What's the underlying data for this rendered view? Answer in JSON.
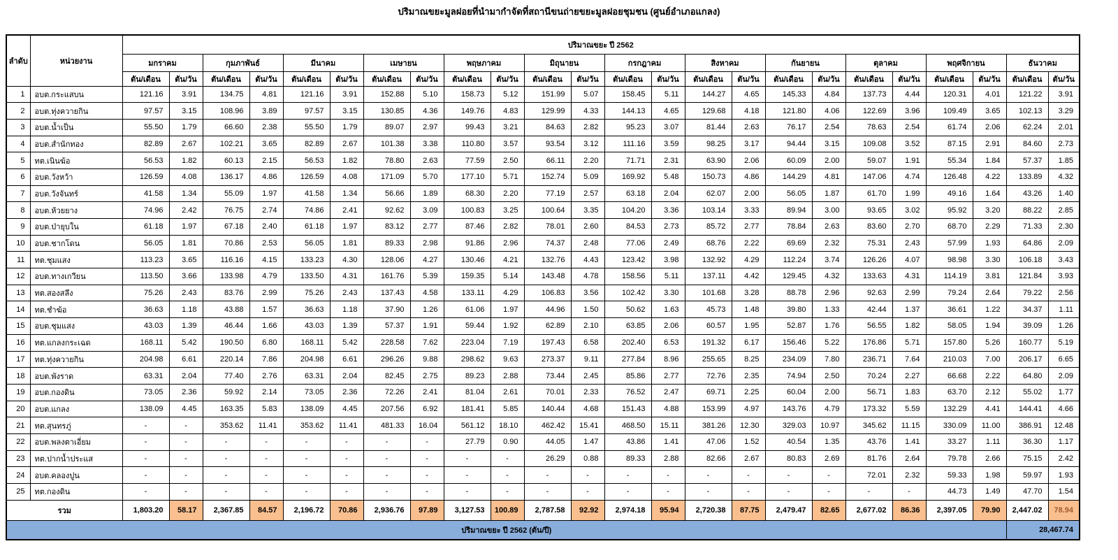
{
  "title": "ปริมาณขยะมูลฝอยที่นำมากำจัดที่สถานีขนถ่ายขยะมูลฝอยชุมชน (ศูนย์อำเภอแกลง)",
  "colors": {
    "total_day_bg": "#FABF8F",
    "footer_bg": "#8AAEDC",
    "dec_day_text": "#A05A2D"
  },
  "table": {
    "col_no": "ลำดับ",
    "col_agency": "หน่วยงาน",
    "year_band": "ปริมาณขยะ ปี 2562",
    "unit_month": "ตัน/เดือน",
    "unit_day": "ตัน/วัน",
    "months": [
      "มกราคม",
      "กุมภาพันธ์",
      "มีนาคม",
      "เมษายน",
      "พฤษภาคม",
      "มิถุนายน",
      "กรกฎาคม",
      "สิงหาคม",
      "กันยายน",
      "ตุลาคม",
      "พฤศจิกายน",
      "ธันวาคม"
    ],
    "rows": [
      {
        "no": "1",
        "agency": "อบต.กระแสบน",
        "values": [
          "121.16",
          "3.91",
          "134.75",
          "4.81",
          "121.16",
          "3.91",
          "152.88",
          "5.10",
          "158.73",
          "5.12",
          "151.99",
          "5.07",
          "158.45",
          "5.11",
          "144.27",
          "4.65",
          "145.33",
          "4.84",
          "137.73",
          "4.44",
          "120.31",
          "4.01",
          "121.22",
          "3.91"
        ]
      },
      {
        "no": "2",
        "agency": "อบต.ทุ่งควายกิน",
        "values": [
          "97.57",
          "3.15",
          "108.96",
          "3.89",
          "97.57",
          "3.15",
          "130.85",
          "4.36",
          "149.76",
          "4.83",
          "129.99",
          "4.33",
          "144.13",
          "4.65",
          "129.68",
          "4.18",
          "121.80",
          "4.06",
          "122.69",
          "3.96",
          "109.49",
          "3.65",
          "102.13",
          "3.29"
        ]
      },
      {
        "no": "3",
        "agency": "อบต.น้ำเป็น",
        "values": [
          "55.50",
          "1.79",
          "66.60",
          "2.38",
          "55.50",
          "1.79",
          "89.07",
          "2.97",
          "99.43",
          "3.21",
          "84.63",
          "2.82",
          "95.23",
          "3.07",
          "81.44",
          "2.63",
          "76.17",
          "2.54",
          "78.63",
          "2.54",
          "61.74",
          "2.06",
          "62.24",
          "2.01"
        ]
      },
      {
        "no": "4",
        "agency": "อบต.สำนักทอง",
        "values": [
          "82.89",
          "2.67",
          "102.21",
          "3.65",
          "82.89",
          "2.67",
          "101.38",
          "3.38",
          "110.80",
          "3.57",
          "93.54",
          "3.12",
          "111.16",
          "3.59",
          "98.25",
          "3.17",
          "94.44",
          "3.15",
          "109.08",
          "3.52",
          "87.15",
          "2.91",
          "84.60",
          "2.73"
        ]
      },
      {
        "no": "5",
        "agency": "ทต.เนินฆ้อ",
        "values": [
          "56.53",
          "1.82",
          "60.13",
          "2.15",
          "56.53",
          "1.82",
          "78.80",
          "2.63",
          "77.59",
          "2.50",
          "66.11",
          "2.20",
          "71.71",
          "2.31",
          "63.90",
          "2.06",
          "60.09",
          "2.00",
          "59.07",
          "1.91",
          "55.34",
          "1.84",
          "57.37",
          "1.85"
        ]
      },
      {
        "no": "6",
        "agency": "อบต.วังหว้า",
        "values": [
          "126.59",
          "4.08",
          "136.17",
          "4.86",
          "126.59",
          "4.08",
          "171.09",
          "5.70",
          "177.10",
          "5.71",
          "152.74",
          "5.09",
          "169.92",
          "5.48",
          "150.73",
          "4.86",
          "144.29",
          "4.81",
          "147.06",
          "4.74",
          "126.48",
          "4.22",
          "133.89",
          "4.32"
        ]
      },
      {
        "no": "7",
        "agency": "อบต.วังจันทร์",
        "values": [
          "41.58",
          "1.34",
          "55.09",
          "1.97",
          "41.58",
          "1.34",
          "56.66",
          "1.89",
          "68.30",
          "2.20",
          "77.19",
          "2.57",
          "63.18",
          "2.04",
          "62.07",
          "2.00",
          "56.05",
          "1.87",
          "61.70",
          "1.99",
          "49.16",
          "1.64",
          "43.26",
          "1.40"
        ]
      },
      {
        "no": "8",
        "agency": "อบต.ห้วยยาง",
        "values": [
          "74.96",
          "2.42",
          "76.75",
          "2.74",
          "74.86",
          "2.41",
          "92.62",
          "3.09",
          "100.83",
          "3.25",
          "100.64",
          "3.35",
          "104.20",
          "3.36",
          "103.14",
          "3.33",
          "89.94",
          "3.00",
          "93.65",
          "3.02",
          "95.92",
          "3.20",
          "88.22",
          "2.85"
        ]
      },
      {
        "no": "9",
        "agency": "อบต.ป่ายุบใน",
        "values": [
          "61.18",
          "1.97",
          "67.18",
          "2.40",
          "61.18",
          "1.97",
          "83.12",
          "2.77",
          "87.46",
          "2.82",
          "78.01",
          "2.60",
          "84.53",
          "2.73",
          "85.72",
          "2.77",
          "78.84",
          "2.63",
          "83.60",
          "2.70",
          "68.70",
          "2.29",
          "71.33",
          "2.30"
        ]
      },
      {
        "no": "10",
        "agency": "อบต.ชากโดน",
        "values": [
          "56.05",
          "1.81",
          "70.86",
          "2.53",
          "56.05",
          "1.81",
          "89.33",
          "2.98",
          "91.86",
          "2.96",
          "74.37",
          "2.48",
          "77.06",
          "2.49",
          "68.76",
          "2.22",
          "69.69",
          "2.32",
          "75.31",
          "2.43",
          "57.99",
          "1.93",
          "64.86",
          "2.09"
        ]
      },
      {
        "no": "11",
        "agency": "ทต.ชุมแสง",
        "values": [
          "113.23",
          "3.65",
          "116.16",
          "4.15",
          "133.23",
          "4.30",
          "128.06",
          "4.27",
          "130.46",
          "4.21",
          "132.76",
          "4.43",
          "123.42",
          "3.98",
          "132.92",
          "4.29",
          "112.24",
          "3.74",
          "126.26",
          "4.07",
          "98.98",
          "3.30",
          "106.18",
          "3.43"
        ]
      },
      {
        "no": "12",
        "agency": "อบต.ทางเกวียน",
        "values": [
          "113.50",
          "3.66",
          "133.98",
          "4.79",
          "133.50",
          "4.31",
          "161.76",
          "5.39",
          "159.35",
          "5.14",
          "143.48",
          "4.78",
          "158.56",
          "5.11",
          "137.11",
          "4.42",
          "129.45",
          "4.32",
          "133.63",
          "4.31",
          "114.19",
          "3.81",
          "121.84",
          "3.93"
        ]
      },
      {
        "no": "13",
        "agency": "ทต.สองสลึง",
        "values": [
          "75.26",
          "2.43",
          "83.76",
          "2.99",
          "75.26",
          "2.43",
          "137.43",
          "4.58",
          "133.11",
          "4.29",
          "106.83",
          "3.56",
          "102.42",
          "3.30",
          "101.68",
          "3.28",
          "88.78",
          "2.96",
          "92.63",
          "2.99",
          "79.24",
          "2.64",
          "79.22",
          "2.56"
        ]
      },
      {
        "no": "14",
        "agency": "ทต.ชำฆ้อ",
        "values": [
          "36.63",
          "1.18",
          "43.88",
          "1.57",
          "36.63",
          "1.18",
          "37.90",
          "1.26",
          "61.06",
          "1.97",
          "44.96",
          "1.50",
          "50.62",
          "1.63",
          "45.73",
          "1.48",
          "39.80",
          "1.33",
          "42.44",
          "1.37",
          "36.61",
          "1.22",
          "34.37",
          "1.11"
        ]
      },
      {
        "no": "15",
        "agency": "อบต.ชุมแสง",
        "values": [
          "43.03",
          "1.39",
          "46.44",
          "1.66",
          "43.03",
          "1.39",
          "57.37",
          "1.91",
          "59.44",
          "1.92",
          "62.89",
          "2.10",
          "63.85",
          "2.06",
          "60.57",
          "1.95",
          "52.87",
          "1.76",
          "56.55",
          "1.82",
          "58.05",
          "1.94",
          "39.09",
          "1.26"
        ]
      },
      {
        "no": "16",
        "agency": "ทต.แกลงกระเฉด",
        "values": [
          "168.11",
          "5.42",
          "190.50",
          "6.80",
          "168.11",
          "5.42",
          "228.58",
          "7.62",
          "223.04",
          "7.19",
          "197.43",
          "6.58",
          "202.40",
          "6.53",
          "191.32",
          "6.17",
          "156.46",
          "5.22",
          "176.86",
          "5.71",
          "157.80",
          "5.26",
          "160.77",
          "5.19"
        ]
      },
      {
        "no": "17",
        "agency": "ทต.ทุ่งควายกิน",
        "values": [
          "204.98",
          "6.61",
          "220.14",
          "7.86",
          "204.98",
          "6.61",
          "296.26",
          "9.88",
          "298.62",
          "9.63",
          "273.37",
          "9.11",
          "277.84",
          "8.96",
          "255.65",
          "8.25",
          "234.09",
          "7.80",
          "236.71",
          "7.64",
          "210.03",
          "7.00",
          "206.17",
          "6.65"
        ]
      },
      {
        "no": "18",
        "agency": "อบต.พังราด",
        "values": [
          "63.31",
          "2.04",
          "77.40",
          "2.76",
          "63.31",
          "2.04",
          "82.45",
          "2.75",
          "89.23",
          "2.88",
          "73.44",
          "2.45",
          "85.86",
          "2.77",
          "72.76",
          "2.35",
          "74.94",
          "2.50",
          "70.24",
          "2.27",
          "66.68",
          "2.22",
          "64.80",
          "2.09"
        ]
      },
      {
        "no": "19",
        "agency": "อบต.กองดิน",
        "values": [
          "73.05",
          "2.36",
          "59.92",
          "2.14",
          "73.05",
          "2.36",
          "72.26",
          "2.41",
          "81.04",
          "2.61",
          "70.01",
          "2.33",
          "76.52",
          "2.47",
          "69.71",
          "2.25",
          "60.04",
          "2.00",
          "56.71",
          "1.83",
          "63.70",
          "2.12",
          "55.02",
          "1.77"
        ]
      },
      {
        "no": "20",
        "agency": "อบต.แกลง",
        "values": [
          "138.09",
          "4.45",
          "163.35",
          "5.83",
          "138.09",
          "4.45",
          "207.56",
          "6.92",
          "181.41",
          "5.85",
          "140.44",
          "4.68",
          "151.43",
          "4.88",
          "153.99",
          "4.97",
          "143.76",
          "4.79",
          "173.32",
          "5.59",
          "132.29",
          "4.41",
          "144.41",
          "4.66"
        ]
      },
      {
        "no": "21",
        "agency": "ทต.สุนทรภู่",
        "values": [
          "-",
          "-",
          "353.62",
          "11.41",
          "353.62",
          "11.41",
          "481.33",
          "16.04",
          "561.12",
          "18.10",
          "462.42",
          "15.41",
          "468.50",
          "15.11",
          "381.26",
          "12.30",
          "329.03",
          "10.97",
          "345.62",
          "11.15",
          "330.09",
          "11.00",
          "386.91",
          "12.48"
        ]
      },
      {
        "no": "22",
        "agency": "อบต.พลงตาเอี่ยม",
        "values": [
          "-",
          "-",
          "-",
          "-",
          "-",
          "-",
          "-",
          "-",
          "27.79",
          "0.90",
          "44.05",
          "1.47",
          "43.86",
          "1.41",
          "47.06",
          "1.52",
          "40.54",
          "1.35",
          "43.76",
          "1.41",
          "33.27",
          "1.11",
          "36.30",
          "1.17"
        ]
      },
      {
        "no": "23",
        "agency": "ทต.ปากน้ำประแส",
        "values": [
          "-",
          "-",
          "-",
          "-",
          "-",
          "-",
          "-",
          "-",
          "-",
          "-",
          "26.29",
          "0.88",
          "89.33",
          "2.88",
          "82.66",
          "2.67",
          "80.83",
          "2.69",
          "81.76",
          "2.64",
          "79.78",
          "2.66",
          "75.15",
          "2.42"
        ]
      },
      {
        "no": "24",
        "agency": "อบต.คลองปูน",
        "values": [
          "-",
          "-",
          "-",
          "-",
          "-",
          "-",
          "-",
          "-",
          "-",
          "-",
          "-",
          "-",
          "-",
          "-",
          "-",
          "-",
          "-",
          "-",
          "72.01",
          "2.32",
          "59.33",
          "1.98",
          "59.97",
          "1.93"
        ]
      },
      {
        "no": "25",
        "agency": "ทต.กองดิน",
        "values": [
          "-",
          "-",
          "-",
          "-",
          "-",
          "-",
          "-",
          "-",
          "-",
          "-",
          "-",
          "-",
          "-",
          "-",
          "-",
          "-",
          "-",
          "-",
          "-",
          "-",
          "44.73",
          "1.49",
          "47.70",
          "1.54"
        ]
      }
    ],
    "total": {
      "label": "รวม",
      "values": [
        "1,803.20",
        "58.17",
        "2,367.85",
        "84.57",
        "2,196.72",
        "70.86",
        "2,936.76",
        "97.89",
        "3,127.53",
        "100.89",
        "2,787.58",
        "92.92",
        "2,974.18",
        "95.94",
        "2,720.38",
        "87.75",
        "2,479.47",
        "82.65",
        "2,677.02",
        "86.36",
        "2,397.05",
        "79.90",
        "2,447.02",
        "78.94"
      ]
    },
    "footer": {
      "label": "ปริมาณขยะ ปี 2562 (ตัน/ปี)",
      "value": "28,467.74"
    }
  }
}
